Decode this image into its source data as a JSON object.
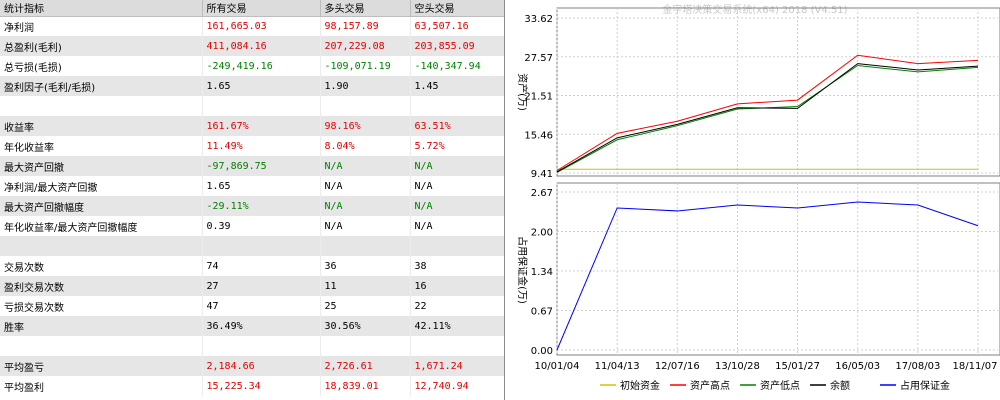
{
  "table": {
    "headers": [
      "统计指标",
      "所有交易",
      "多头交易",
      "空头交易"
    ],
    "rows": [
      {
        "label": "净利润",
        "values": [
          "161,665.03",
          "98,157.89",
          "63,507.16"
        ],
        "color": "red"
      },
      {
        "label": "总盈利(毛利)",
        "values": [
          "411,084.16",
          "207,229.08",
          "203,855.09"
        ],
        "color": "red"
      },
      {
        "label": "总亏损(毛损)",
        "values": [
          "-249,419.16",
          "-109,071.19",
          "-140,347.94"
        ],
        "color": "green"
      },
      {
        "label": "盈利因子(毛利/毛损)",
        "values": [
          "1.65",
          "1.90",
          "1.45"
        ],
        "color": "black"
      },
      {
        "label": "",
        "values": [
          "",
          "",
          ""
        ],
        "color": "black"
      },
      {
        "label": "收益率",
        "values": [
          "161.67%",
          "98.16%",
          "63.51%"
        ],
        "color": "red"
      },
      {
        "label": "年化收益率",
        "values": [
          "11.49%",
          "8.04%",
          "5.72%"
        ],
        "color": "red"
      },
      {
        "label": "最大资产回撤",
        "values": [
          "-97,869.75",
          "N/A",
          "N/A"
        ],
        "color": "green"
      },
      {
        "label": "净利润/最大资产回撤",
        "values": [
          "1.65",
          "N/A",
          "N/A"
        ],
        "color": "black"
      },
      {
        "label": "最大资产回撤幅度",
        "values": [
          "-29.11%",
          "N/A",
          "N/A"
        ],
        "color": "green"
      },
      {
        "label": "年化收益率/最大资产回撤幅度",
        "values": [
          "0.39",
          "N/A",
          "N/A"
        ],
        "color": "black"
      },
      {
        "label": "",
        "values": [
          "",
          "",
          ""
        ],
        "color": "black"
      },
      {
        "label": "交易次数",
        "values": [
          "74",
          "36",
          "38"
        ],
        "color": "black"
      },
      {
        "label": "盈利交易次数",
        "values": [
          "27",
          "11",
          "16"
        ],
        "color": "black"
      },
      {
        "label": "亏损交易次数",
        "values": [
          "47",
          "25",
          "22"
        ],
        "color": "black"
      },
      {
        "label": "胜率",
        "values": [
          "36.49%",
          "30.56%",
          "42.11%"
        ],
        "color": "black"
      },
      {
        "label": "",
        "values": [
          "",
          "",
          ""
        ],
        "color": "black"
      },
      {
        "label": "平均盈亏",
        "values": [
          "2,184.66",
          "2,726.61",
          "1,671.24"
        ],
        "color": "red"
      },
      {
        "label": "平均盈利",
        "values": [
          "15,225.34",
          "18,839.01",
          "12,740.94"
        ],
        "color": "red"
      }
    ]
  },
  "chart": {
    "title": "金字塔决策交易系统(x64) 2018 (V4.51)",
    "top_ylabel": "资产(万)",
    "bottom_ylabel": "占用保证金(万)",
    "top_yticks": [
      "33.62",
      "27.57",
      "21.51",
      "15.46",
      "9.41"
    ],
    "bottom_yticks": [
      "2.67",
      "2.00",
      "1.34",
      "0.67",
      "0.00"
    ],
    "xticks": [
      "10/01/04",
      "11/04/13",
      "12/07/16",
      "13/10/28",
      "15/01/27",
      "16/05/03",
      "17/08/03",
      "18/11/07"
    ],
    "legend": [
      {
        "label": "初始资金",
        "color": "#c8c800"
      },
      {
        "label": "资产高点",
        "color": "#ff0000"
      },
      {
        "label": "资产低点",
        "color": "#008000"
      },
      {
        "label": "余额",
        "color": "#000000"
      },
      {
        "label": "占用保证金",
        "color": "#0000ff"
      }
    ]
  },
  "chart_data": {
    "type": "line",
    "x": [
      "10/01/04",
      "11/04/13",
      "12/07/16",
      "13/10/28",
      "15/01/27",
      "16/05/03",
      "17/08/03",
      "18/11/07"
    ],
    "top_panel": {
      "ylabel": "资产(万)",
      "ylim": [
        9.41,
        33.62
      ],
      "series": [
        {
          "name": "初始资金",
          "values": [
            10.0,
            10.0,
            10.0,
            10.0,
            10.0,
            10.0,
            10.0,
            10.0
          ]
        },
        {
          "name": "资产高点",
          "values": [
            9.8,
            15.6,
            17.5,
            20.2,
            20.8,
            27.8,
            26.5,
            27.0
          ]
        },
        {
          "name": "资产低点",
          "values": [
            9.5,
            14.6,
            16.8,
            19.4,
            19.8,
            26.2,
            25.2,
            25.9
          ]
        },
        {
          "name": "余额",
          "values": [
            9.6,
            14.9,
            17.0,
            19.6,
            19.5,
            26.5,
            25.5,
            26.1
          ]
        }
      ]
    },
    "bottom_panel": {
      "ylabel": "占用保证金(万)",
      "ylim": [
        0.0,
        2.67
      ],
      "series": [
        {
          "name": "占用保证金",
          "values": [
            0.0,
            2.4,
            2.35,
            2.45,
            2.4,
            2.5,
            2.45,
            2.1
          ]
        }
      ]
    }
  }
}
